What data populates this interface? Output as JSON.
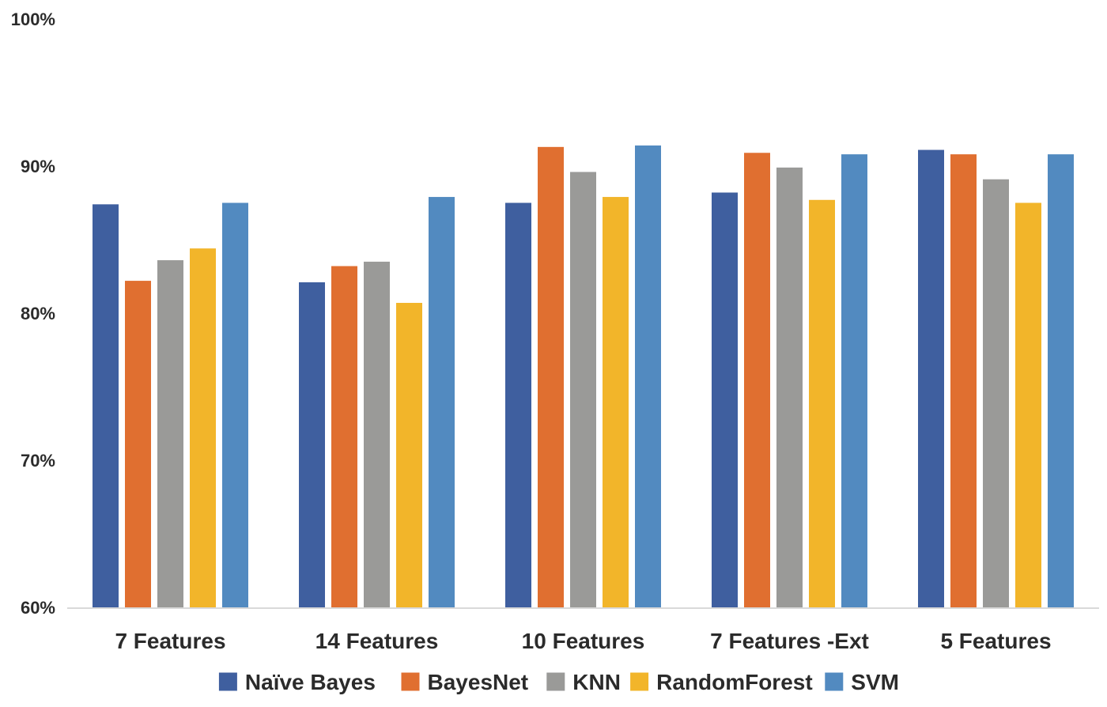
{
  "chart_data": {
    "type": "bar",
    "categories": [
      "7 Features",
      "14 Features",
      "10 Features",
      "7 Features -Ext",
      "5 Features"
    ],
    "series": [
      {
        "name": "Naïve Bayes",
        "color": "#3f5f9f",
        "values": [
          87.4,
          82.1,
          87.5,
          88.2,
          91.1
        ]
      },
      {
        "name": "BayesNet",
        "color": "#e06f30",
        "values": [
          82.2,
          83.2,
          91.3,
          90.9,
          90.8
        ]
      },
      {
        "name": "KNN",
        "color": "#9a9a98",
        "values": [
          83.6,
          83.5,
          89.6,
          89.9,
          89.1
        ]
      },
      {
        "name": "RandomForest",
        "color": "#f2b52a",
        "values": [
          84.4,
          80.7,
          87.9,
          87.7,
          87.5
        ]
      },
      {
        "name": "SVM",
        "color": "#528ac0",
        "values": [
          87.5,
          87.9,
          91.4,
          90.8,
          90.8
        ]
      }
    ],
    "yticks": [
      "60%",
      "70%",
      "80%",
      "90%",
      "100%"
    ],
    "ylim": [
      60,
      100
    ],
    "title": "",
    "xlabel": "",
    "ylabel": "",
    "grid": false,
    "legend_position": "bottom"
  }
}
